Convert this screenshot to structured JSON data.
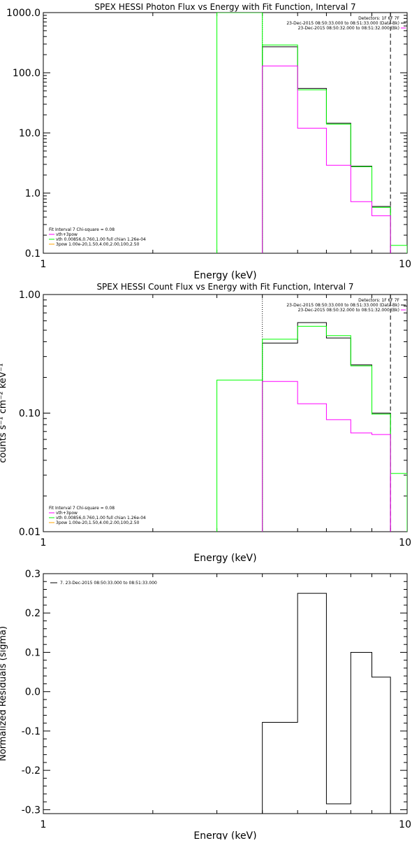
{
  "colors": {
    "axis": "#000000",
    "background": "#ffffff",
    "data_total": "#000000",
    "background_series": "#ff00ff",
    "model_green": "#00ff00",
    "marker_dotted": "#000000",
    "marker_dashed": "#000000",
    "residuals": "#000000"
  },
  "chart_data": [
    {
      "type": "line",
      "title": "SPEX HESSI Photon Flux vs Energy with Fit Function, Interval 7",
      "xlabel": "Energy (keV)",
      "ylabel": "",
      "xscale": "log",
      "yscale": "log",
      "xlim": [
        1,
        10
      ],
      "ylim": [
        0.1,
        1000
      ],
      "xticks": [
        {
          "value": 1,
          "label": "1"
        },
        {
          "value": 10,
          "label": "10"
        }
      ],
      "yticks": [
        {
          "value": 0.1,
          "label": "0.1"
        },
        {
          "value": 1,
          "label": "1.0"
        },
        {
          "value": 10,
          "label": "10.0"
        },
        {
          "value": 100,
          "label": "100.0"
        },
        {
          "value": 1000,
          "label": "1000.0"
        }
      ],
      "info_text": [
        "Detectors: 1F 6F 7F",
        "23-Dec-2015 08:50:33.000 to 08:51:33.000 (Data-Bk)",
        "23-Dec-2015 08:50:32.000 to 08:51:32.000 (Bk)"
      ],
      "legend_text": [
        "Fit Interval  7   Chi-square = 0.08",
        "vth+3pow",
        "vth 0.00856,0.760,1.00  full chian 1.26e-04",
        "3pow 1.00e-20,1.50,4.00,2.00,100,2.50"
      ],
      "vlines": [
        {
          "x": 4,
          "style": "dotted",
          "color": "#000000"
        },
        {
          "x": 9,
          "style": "dashed",
          "color": "#000000"
        }
      ],
      "series": [
        {
          "color": "#00ff00",
          "edges": [
            3,
            4
          ],
          "values": [
            1000
          ]
        },
        {
          "color": "#000000",
          "edges": [
            4,
            5,
            6,
            7,
            8,
            9
          ],
          "values": [
            270,
            55,
            14.5,
            2.8,
            0.6
          ]
        },
        {
          "color": "#00ff00",
          "edges": [
            4,
            5,
            6,
            7,
            8,
            9,
            10
          ],
          "values": [
            290,
            52,
            14,
            2.75,
            0.58,
            0.135
          ]
        },
        {
          "color": "#ff00ff",
          "edges": [
            4,
            5,
            6,
            7,
            8,
            9
          ],
          "values": [
            130,
            12,
            2.9,
            0.72,
            0.42
          ]
        }
      ]
    },
    {
      "type": "line",
      "title": "SPEX HESSI Count Flux vs Energy with Fit Function, Interval 7",
      "xlabel": "Energy (keV)",
      "ylabel": "counts s⁻¹ cm⁻² keV⁻¹",
      "xscale": "log",
      "yscale": "log",
      "xlim": [
        1,
        10
      ],
      "ylim": [
        0.01,
        1
      ],
      "xticks": [
        {
          "value": 1,
          "label": "1"
        },
        {
          "value": 10,
          "label": "10"
        }
      ],
      "yticks": [
        {
          "value": 0.01,
          "label": "0.01"
        },
        {
          "value": 0.1,
          "label": "0.10"
        },
        {
          "value": 1,
          "label": "1.00"
        }
      ],
      "info_text": [
        "Detectors: 1F 6F 7F",
        "23-Dec-2015 08:50:33.000 to 08:51:33.000 (Data-Bk)",
        "23-Dec-2015 08:50:32.000 to 08:51:32.000 (Bk)"
      ],
      "legend_text": [
        "Fit Interval  7   Chi-square = 0.08",
        "vth+3pow",
        "vth 0.00856,0.760,1.00  full chian 1.26e-04",
        "3pow 1.00e-20,1.50,4.00,2.00,100,2.50"
      ],
      "vlines": [
        {
          "x": 4,
          "style": "dotted",
          "color": "#000000"
        },
        {
          "x": 9,
          "style": "dashed",
          "color": "#000000"
        }
      ],
      "series": [
        {
          "color": "#00ff00",
          "edges": [
            3,
            4
          ],
          "values": [
            0.19
          ]
        },
        {
          "color": "#000000",
          "edges": [
            4,
            5,
            6,
            7,
            8,
            9
          ],
          "values": [
            0.39,
            0.58,
            0.43,
            0.255,
            0.1
          ]
        },
        {
          "color": "#00ff00",
          "edges": [
            4,
            5,
            6,
            7,
            8,
            9,
            10
          ],
          "values": [
            0.42,
            0.54,
            0.45,
            0.25,
            0.098,
            0.031
          ]
        },
        {
          "color": "#ff00ff",
          "edges": [
            4,
            5,
            6,
            7,
            8,
            9
          ],
          "values": [
            0.185,
            0.12,
            0.088,
            0.068,
            0.066
          ]
        }
      ]
    },
    {
      "type": "line",
      "title": "",
      "xlabel": "Energy (keV)",
      "ylabel": "Normalized Residuals (sigma)",
      "xscale": "log",
      "yscale": "linear",
      "xlim": [
        1,
        10
      ],
      "ylim": [
        -0.31,
        0.3
      ],
      "xticks": [
        {
          "value": 1,
          "label": "1"
        },
        {
          "value": 10,
          "label": "10"
        }
      ],
      "yticks": [
        {
          "value": -0.3,
          "label": "-0.3"
        },
        {
          "value": -0.2,
          "label": "-0.2"
        },
        {
          "value": -0.1,
          "label": "-0.1"
        },
        {
          "value": 0,
          "label": "0.0"
        },
        {
          "value": 0.1,
          "label": "0.1"
        },
        {
          "value": 0.2,
          "label": "0.2"
        },
        {
          "value": 0.3,
          "label": "0.3"
        }
      ],
      "info_text": [],
      "legend_text": [
        "7. 23-Dec-2015 08:50:33.000 to 08:51:33.000"
      ],
      "vlines": [],
      "series": [
        {
          "color": "#000000",
          "edges": [
            4,
            5,
            6,
            7,
            8,
            9
          ],
          "values": [
            -0.078,
            0.25,
            -0.285,
            0.1,
            0.037
          ]
        }
      ]
    }
  ]
}
